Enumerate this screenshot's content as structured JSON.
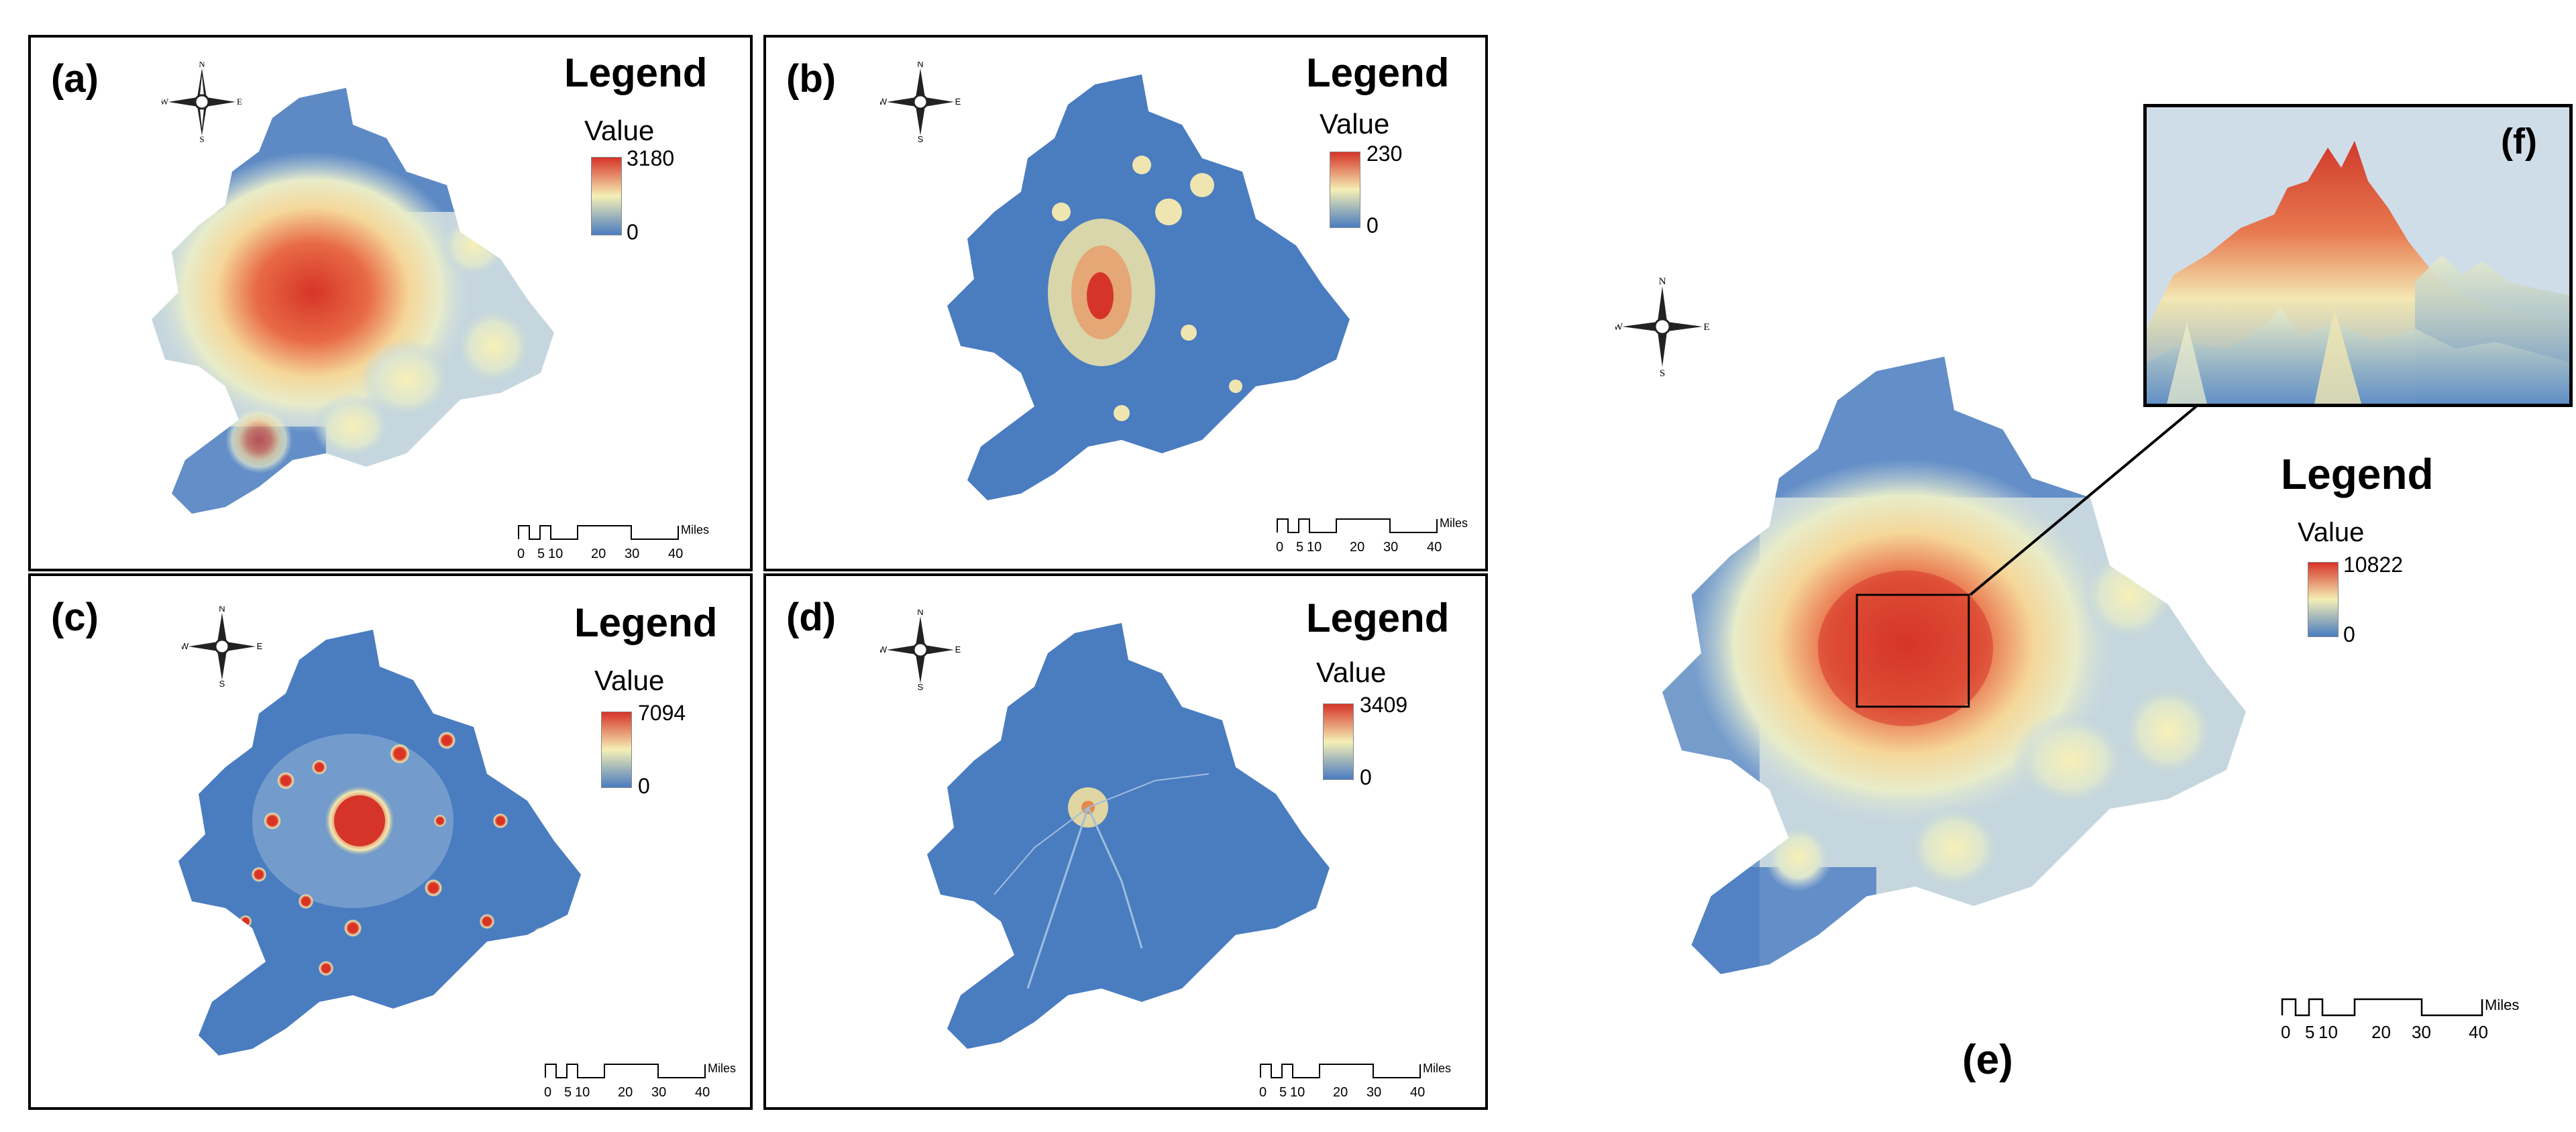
{
  "panels": [
    {
      "id": "a",
      "label": "(a)",
      "legend_title": "Legend",
      "value_label": "Value",
      "max": "3180",
      "min": "0"
    },
    {
      "id": "b",
      "label": "(b)",
      "legend_title": "Legend",
      "value_label": "Value",
      "max": "230",
      "min": "0"
    },
    {
      "id": "c",
      "label": "(c)",
      "legend_title": "Legend",
      "value_label": "Value",
      "max": "7094",
      "min": "0"
    },
    {
      "id": "d",
      "label": "(d)",
      "legend_title": "Legend",
      "value_label": "Value",
      "max": "3409",
      "min": "0"
    },
    {
      "id": "e",
      "label": "(e)",
      "legend_title": "Legend",
      "value_label": "Value",
      "max": "10822",
      "min": "0"
    }
  ],
  "inset": {
    "label": "(f)"
  },
  "compass": {
    "n": "N",
    "s": "S",
    "e": "E",
    "w": "W"
  },
  "scale": {
    "ticks": [
      "0",
      "5",
      "10",
      "20",
      "30",
      "40"
    ],
    "unit": "Miles"
  },
  "colors": {
    "low": "#4a7cc0",
    "mid": "#f5efb5",
    "high": "#d63428",
    "background": "#ffffff"
  }
}
